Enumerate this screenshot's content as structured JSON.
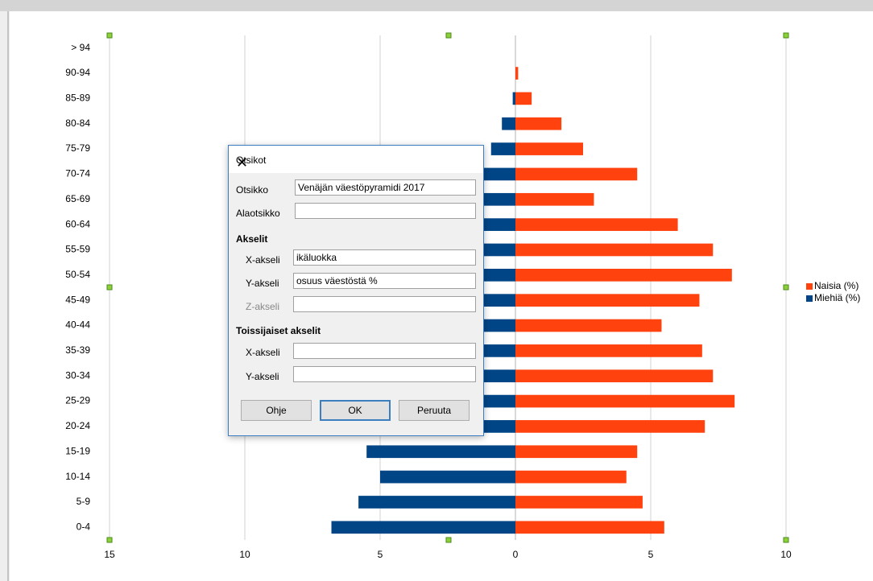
{
  "chart_data": {
    "type": "bar",
    "orientation": "horizontal",
    "categories": [
      "0-4",
      "5-9",
      "10-14",
      "15-19",
      "20-24",
      "25-29",
      "30-34",
      "35-39",
      "40-44",
      "45-49",
      "50-54",
      "55-59",
      "60-64",
      "65-69",
      "70-74",
      "75-79",
      "80-84",
      "85-89",
      "90-94",
      "> 94"
    ],
    "series": [
      {
        "name": "Naisia (%)",
        "color": "#ff420e",
        "values": [
          5.5,
          4.7,
          4.1,
          4.5,
          7.0,
          8.1,
          7.3,
          6.9,
          5.4,
          6.8,
          8.0,
          7.3,
          6.0,
          2.9,
          4.5,
          2.5,
          1.7,
          0.6,
          0.1,
          0
        ]
      },
      {
        "name": "Miehiä (%)",
        "color": "#004586",
        "values": [
          -6.8,
          -5.8,
          -5.0,
          -5.5,
          -7.2,
          -8.2,
          -7.5,
          -6.8,
          -6.0,
          -6.0,
          -6.5,
          -6.3,
          -5.0,
          -2.0,
          -2.8,
          -0.9,
          -0.5,
          -0.1,
          0,
          0
        ]
      }
    ],
    "xlim": [
      -15,
      10
    ],
    "xticks": [
      {
        "value": -15,
        "label": "15"
      },
      {
        "value": -10,
        "label": "10"
      },
      {
        "value": -5,
        "label": "5"
      },
      0,
      5,
      10
    ],
    "grid": true,
    "legend": "right"
  },
  "dialog": {
    "title": "Otsikot",
    "fields": [
      {
        "label": "Otsikko",
        "value": "Venäjän väestöpyramidi 2017"
      },
      {
        "label": "Alaotsikko"
      }
    ],
    "axes_heading": "Akselit",
    "axes": [
      {
        "label": "X-akseli",
        "value": "ikäluokka"
      },
      {
        "label": "Y-akseli",
        "value": "osuus väestöstä %"
      },
      {
        "label": "Z-akseli"
      }
    ],
    "secondary_heading": "Toissijaiset akselit",
    "secondary": [
      {
        "label": "X-akseli"
      },
      {
        "label": "Y-akseli"
      }
    ],
    "buttons": [
      "Ohje",
      "OK",
      "Peruuta"
    ]
  }
}
